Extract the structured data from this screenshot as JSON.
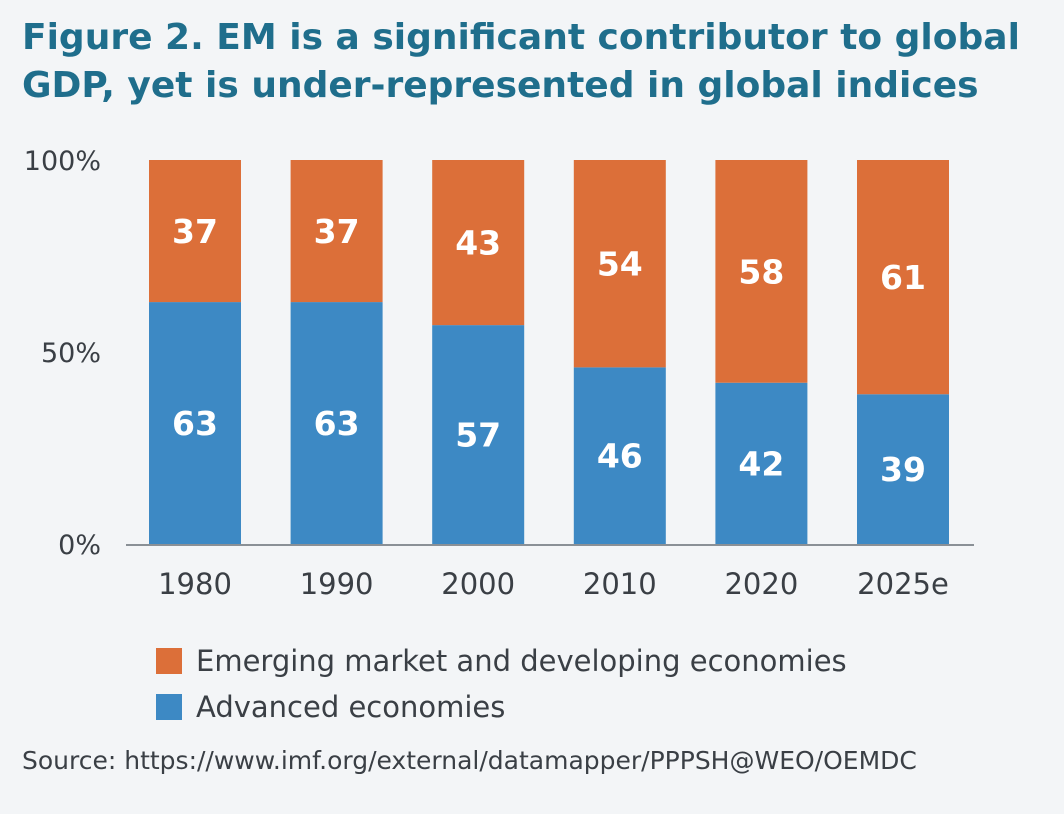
{
  "chart_data": {
    "type": "bar",
    "stacked": true,
    "title": "Figure 2. EM is a significant contributor to global GDP, yet is under-represented in global indices",
    "categories": [
      "1980",
      "1990",
      "2000",
      "2010",
      "2020",
      "2025e"
    ],
    "series": [
      {
        "name": "Advanced economies",
        "color": "#3d89c4",
        "values": [
          63,
          63,
          57,
          46,
          42,
          39
        ]
      },
      {
        "name": "Emerging market and developing economies",
        "color": "#dc6f39",
        "values": [
          37,
          37,
          43,
          54,
          58,
          61
        ]
      }
    ],
    "ylim": [
      0,
      100
    ],
    "yticks": [
      {
        "value": 0,
        "label": "0%"
      },
      {
        "value": 50,
        "label": "50%"
      },
      {
        "value": 100,
        "label": "100%"
      }
    ],
    "legend_order": [
      1,
      0
    ],
    "legend_position": "bottom-left",
    "grid": false,
    "source": "Source: https://www.imf.org/external/datamapper/PPPSH@WEO/OEMDC"
  }
}
